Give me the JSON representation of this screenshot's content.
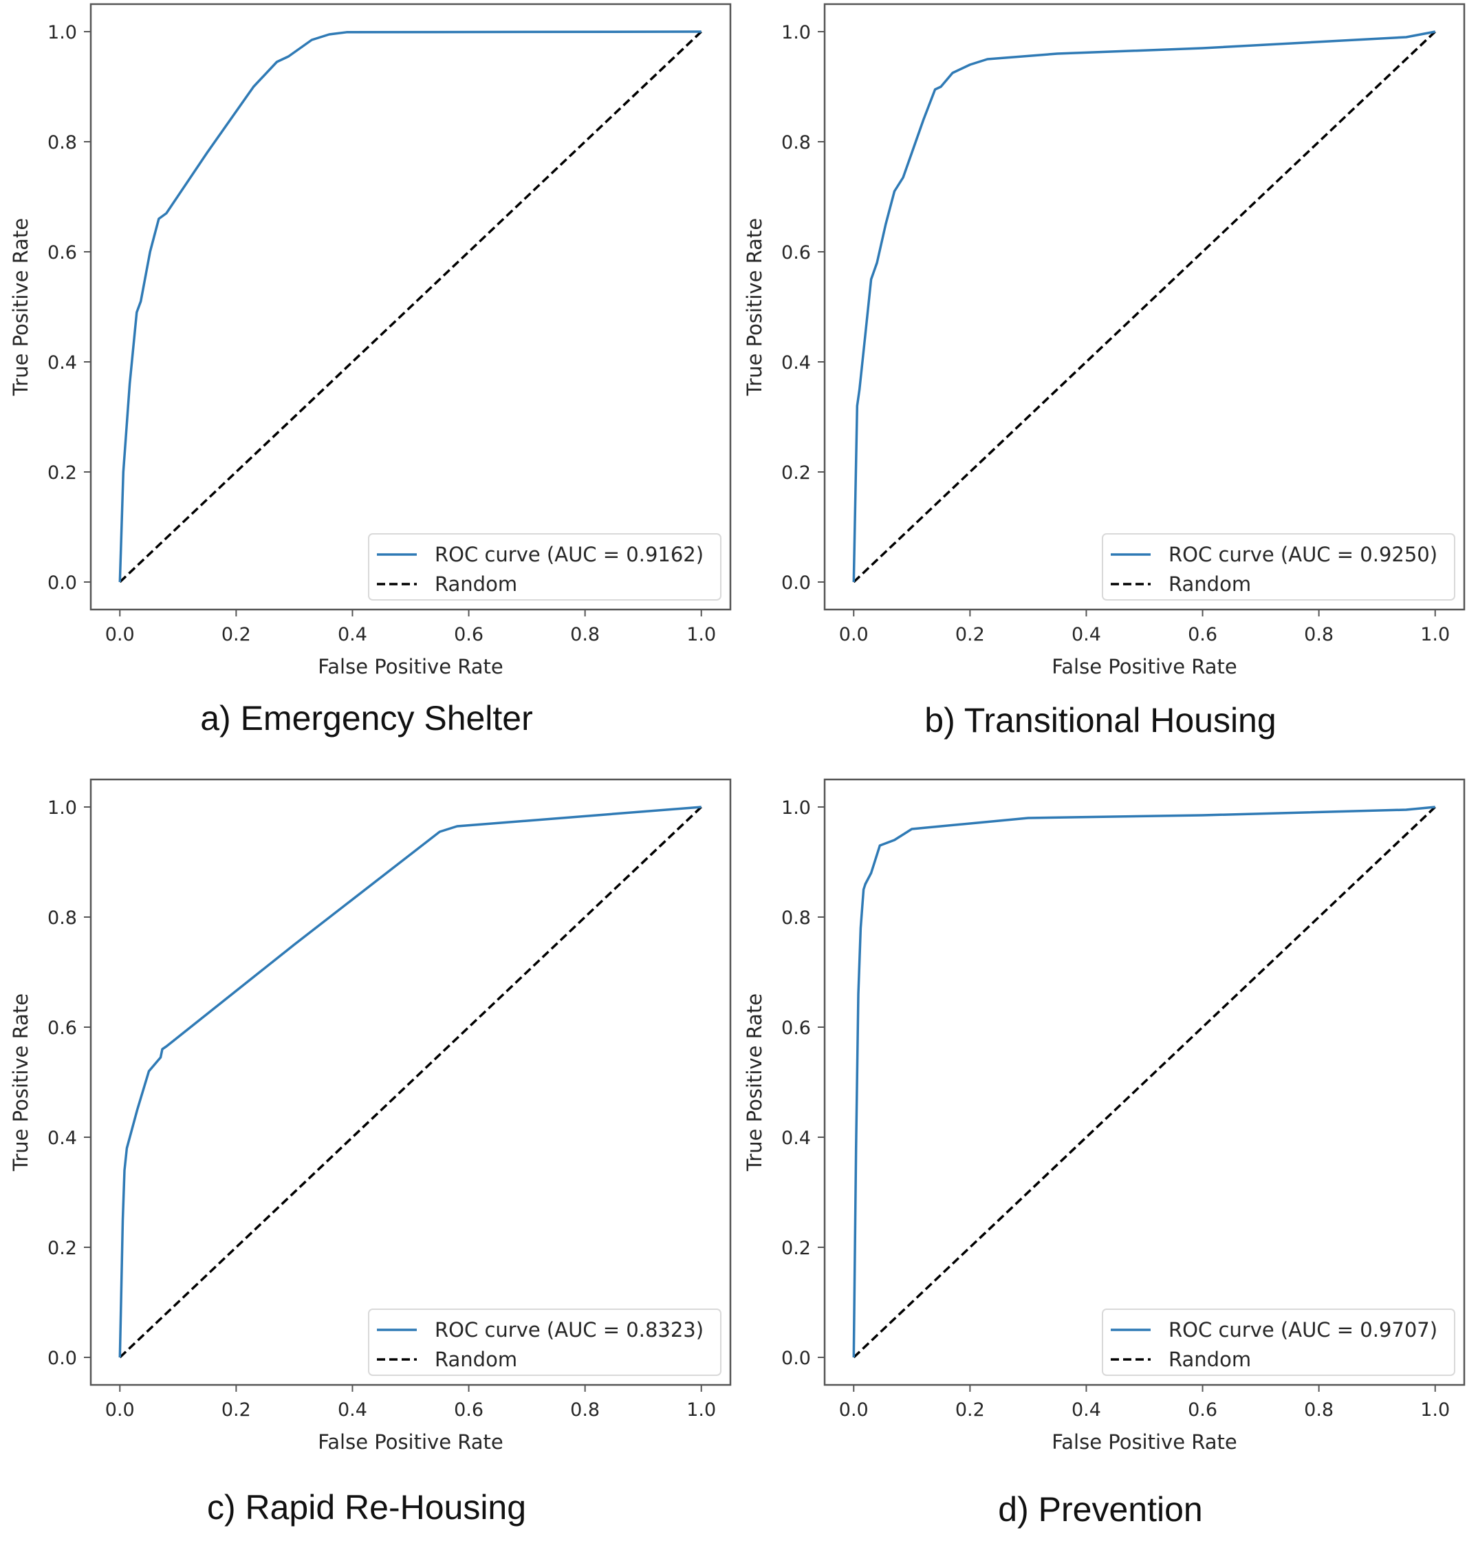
{
  "chart_data": [
    {
      "type": "line",
      "caption": "a) Emergency Shelter",
      "xlabel": "False Positive Rate",
      "ylabel": "True Positive Rate",
      "xlim": [
        -0.05,
        1.05
      ],
      "ylim": [
        -0.05,
        1.05
      ],
      "xticks": [
        "0.0",
        "0.2",
        "0.4",
        "0.6",
        "0.8",
        "1.0"
      ],
      "yticks": [
        "0.0",
        "0.2",
        "0.4",
        "0.6",
        "0.8",
        "1.0"
      ],
      "legend_position": "lower-right",
      "series": [
        {
          "name": "ROC curve (AUC = 0.9162)",
          "color": "#2f7ab5",
          "style": "solid",
          "x": [
            0,
            0.006,
            0.017,
            0.029,
            0.036,
            0.052,
            0.067,
            0.08,
            0.15,
            0.23,
            0.27,
            0.29,
            0.31,
            0.33,
            0.36,
            0.39,
            1.0
          ],
          "y": [
            0,
            0.2,
            0.36,
            0.49,
            0.51,
            0.6,
            0.66,
            0.67,
            0.78,
            0.9,
            0.945,
            0.955,
            0.97,
            0.985,
            0.995,
            0.999,
            1.0
          ]
        },
        {
          "name": "Random",
          "color": "#000000",
          "style": "dashed",
          "x": [
            0,
            1
          ],
          "y": [
            0,
            1
          ]
        }
      ]
    },
    {
      "type": "line",
      "caption": "b) Transitional Housing",
      "xlabel": "False Positive Rate",
      "ylabel": "True Positive Rate",
      "xlim": [
        -0.05,
        1.05
      ],
      "ylim": [
        -0.05,
        1.05
      ],
      "xticks": [
        "0.0",
        "0.2",
        "0.4",
        "0.6",
        "0.8",
        "1.0"
      ],
      "yticks": [
        "0.0",
        "0.2",
        "0.4",
        "0.6",
        "0.8",
        "1.0"
      ],
      "legend_position": "lower-right",
      "series": [
        {
          "name": "ROC curve (AUC = 0.9250)",
          "color": "#2f7ab5",
          "style": "solid",
          "x": [
            0,
            0.003,
            0.006,
            0.01,
            0.02,
            0.03,
            0.04,
            0.055,
            0.07,
            0.085,
            0.1,
            0.12,
            0.14,
            0.15,
            0.17,
            0.2,
            0.23,
            0.35,
            0.6,
            0.95,
            1.0
          ],
          "y": [
            0,
            0.16,
            0.32,
            0.35,
            0.45,
            0.55,
            0.58,
            0.65,
            0.71,
            0.735,
            0.78,
            0.84,
            0.895,
            0.9,
            0.925,
            0.94,
            0.95,
            0.96,
            0.97,
            0.99,
            1.0
          ]
        },
        {
          "name": "Random",
          "color": "#000000",
          "style": "dashed",
          "x": [
            0,
            1
          ],
          "y": [
            0,
            1
          ]
        }
      ]
    },
    {
      "type": "line",
      "caption": "c) Rapid Re-Housing",
      "xlabel": "False Positive Rate",
      "ylabel": "True Positive Rate",
      "xlim": [
        -0.05,
        1.05
      ],
      "ylim": [
        -0.05,
        1.05
      ],
      "xticks": [
        "0.0",
        "0.2",
        "0.4",
        "0.6",
        "0.8",
        "1.0"
      ],
      "yticks": [
        "0.0",
        "0.2",
        "0.4",
        "0.6",
        "0.8",
        "1.0"
      ],
      "legend_position": "lower-right",
      "series": [
        {
          "name": "ROC curve (AUC = 0.8323)",
          "color": "#2f7ab5",
          "style": "solid",
          "x": [
            0,
            0.002,
            0.005,
            0.008,
            0.012,
            0.03,
            0.05,
            0.07,
            0.073,
            0.08,
            0.3,
            0.55,
            0.58,
            1.0
          ],
          "y": [
            0,
            0.1,
            0.25,
            0.34,
            0.38,
            0.45,
            0.52,
            0.545,
            0.56,
            0.565,
            0.75,
            0.955,
            0.965,
            1.0
          ]
        },
        {
          "name": "Random",
          "color": "#000000",
          "style": "dashed",
          "x": [
            0,
            1
          ],
          "y": [
            0,
            1
          ]
        }
      ]
    },
    {
      "type": "line",
      "caption": "d) Prevention",
      "xlabel": "False Positive Rate",
      "ylabel": "True Positive Rate",
      "xlim": [
        -0.05,
        1.05
      ],
      "ylim": [
        -0.05,
        1.05
      ],
      "xticks": [
        "0.0",
        "0.2",
        "0.4",
        "0.6",
        "0.8",
        "1.0"
      ],
      "yticks": [
        "0.0",
        "0.2",
        "0.4",
        "0.6",
        "0.8",
        "1.0"
      ],
      "legend_position": "lower-right",
      "series": [
        {
          "name": "ROC curve (AUC = 0.9707)",
          "color": "#2f7ab5",
          "style": "solid",
          "x": [
            0,
            0.004,
            0.008,
            0.012,
            0.017,
            0.02,
            0.03,
            0.045,
            0.07,
            0.1,
            0.2,
            0.3,
            0.6,
            0.95,
            1.0
          ],
          "y": [
            0,
            0.38,
            0.66,
            0.78,
            0.85,
            0.86,
            0.88,
            0.93,
            0.94,
            0.96,
            0.97,
            0.98,
            0.985,
            0.995,
            1.0
          ]
        },
        {
          "name": "Random",
          "color": "#000000",
          "style": "dashed",
          "x": [
            0,
            1
          ],
          "y": [
            0,
            1
          ]
        }
      ]
    }
  ]
}
